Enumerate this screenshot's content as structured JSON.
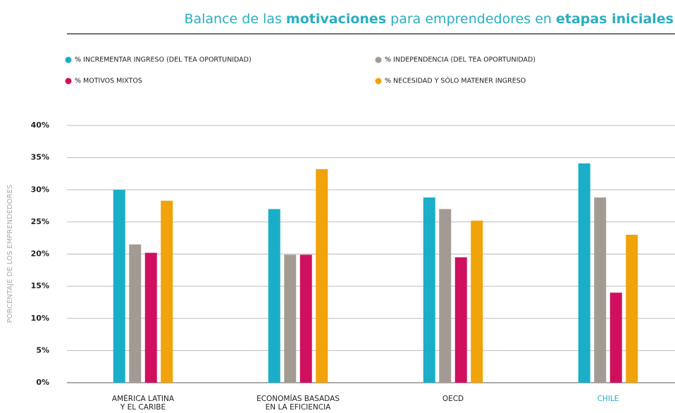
{
  "chart_data": {
    "type": "bar",
    "title": [
      "Balance de las",
      "motivaciones",
      "para emprendedores en",
      "etapas iniciales"
    ],
    "title_color": "#2aaec0",
    "ylabel": "PORCENTAJE DE LOS EMPRENDEDORES",
    "categories": [
      [
        "AMÉRICA LATINA",
        "Y EL CARIBE"
      ],
      [
        "ECONOMÍAS BASADAS",
        "EN LA EFICIENCIA"
      ],
      [
        "OECD"
      ],
      [
        "CHILE"
      ]
    ],
    "category_colors": [
      "#222222",
      "#222222",
      "#222222",
      "#1aaec9"
    ],
    "series": [
      {
        "name": "% INCREMENTAR INGRESO (DEL TEA OPORTUNIDAD)",
        "color": "#1aaec9",
        "values": [
          30,
          27,
          28.8,
          34.1
        ]
      },
      {
        "name": "% INDEPENDENCIA (DEL TEA OPORTUNIDAD)",
        "color": "#a39b93",
        "values": [
          21.5,
          19.9,
          27,
          28.8
        ]
      },
      {
        "name": "% MOTIVOS MIXTOS",
        "color": "#d0105f",
        "values": [
          20.2,
          19.9,
          19.5,
          14
        ]
      },
      {
        "name": "% NECESIDAD Y SÓLO MATENER INGRESO",
        "color": "#f0a30a",
        "values": [
          28.3,
          33.2,
          25.2,
          23
        ]
      }
    ],
    "ylim": [
      0,
      40
    ],
    "yticks": [
      {
        "value": 0,
        "label": "0%"
      },
      {
        "value": 5,
        "label": "5%"
      },
      {
        "value": 10,
        "label": "10%"
      },
      {
        "value": 15,
        "label": "15%"
      },
      {
        "value": 20,
        "label": "20%"
      },
      {
        "value": 25,
        "label": "25%"
      },
      {
        "value": 30,
        "label": "30%"
      },
      {
        "value": 35,
        "label": "35%"
      },
      {
        "value": 40,
        "label": "40%"
      }
    ],
    "grid": true
  }
}
